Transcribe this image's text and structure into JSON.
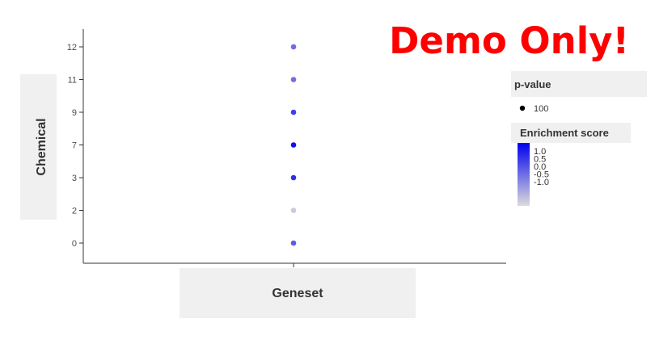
{
  "watermark": "Demo Only!",
  "chart_data": {
    "type": "scatter",
    "xlabel": "Geneset",
    "ylabel": "Chemical",
    "categories_y": [
      "0",
      "2",
      "3",
      "7",
      "9",
      "11",
      "12"
    ],
    "points": [
      {
        "y": "12",
        "score": 0.0
      },
      {
        "y": "11",
        "score": 0.0
      },
      {
        "y": "9",
        "score": 0.5
      },
      {
        "y": "7",
        "score": 1.0
      },
      {
        "y": "3",
        "score": 0.7
      },
      {
        "y": "2",
        "score": -1.0
      },
      {
        "y": "0",
        "score": 0.2
      }
    ],
    "color_scale": {
      "low": "#dcdcdc",
      "high": "#0000ee",
      "domain": [
        -1.2,
        1.2
      ]
    },
    "grid": false,
    "legend": {
      "placement": "right",
      "size_title": "p-value",
      "size_entries": [
        "100"
      ],
      "color_title": "Enrichment score",
      "color_ticks": [
        "1.0",
        "0.5",
        "0.0",
        "-0.5",
        "-1.0"
      ]
    }
  }
}
